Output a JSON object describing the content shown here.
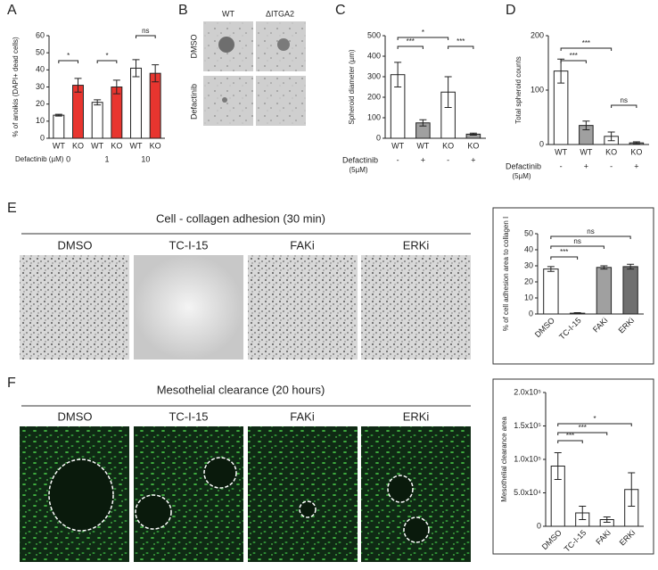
{
  "panel_labels": [
    "A",
    "B",
    "C",
    "D",
    "E",
    "F"
  ],
  "B_images": {
    "columns": [
      "WT",
      "ΔITGA2"
    ],
    "rows": [
      "DMSO",
      "Defactinib"
    ]
  },
  "E_images": {
    "title": "Cell - collagen adhesion (30 min)",
    "columns": [
      "DMSO",
      "TC-I-15",
      "FAKi",
      "ERKi"
    ]
  },
  "F_images": {
    "title": "Mesothelial clearance (20 hours)",
    "columns": [
      "DMSO",
      "TC-I-15",
      "FAKi",
      "ERKi"
    ]
  },
  "chart_data": [
    {
      "type": "bar",
      "ylabel": "% of anoikis (DAPI+ dead cells)",
      "categories": [
        "WT",
        "KO",
        "WT",
        "KO",
        "WT",
        "KO"
      ],
      "values": [
        13.5,
        31,
        21,
        30,
        41,
        38
      ],
      "errors": [
        0.5,
        4,
        1.5,
        4,
        5,
        5
      ],
      "colors": [
        "#ffffff",
        "#e8352f",
        "#ffffff",
        "#e8352f",
        "#ffffff",
        "#e8352f"
      ],
      "group_label": "Defactinib (µM)",
      "groups": [
        "0",
        "1",
        "10"
      ],
      "significance": [
        "*",
        "*",
        "ns"
      ],
      "ylim": [
        0,
        60
      ],
      "yticks": [
        0,
        10,
        20,
        30,
        40,
        50,
        60
      ]
    },
    {
      "type": "bar",
      "ylabel": "Spheroid diameter (µm)",
      "categories": [
        "WT",
        "WT",
        "KO",
        "KO"
      ],
      "values": [
        310,
        75,
        225,
        20
      ],
      "errors": [
        60,
        15,
        75,
        5
      ],
      "colors": [
        "#ffffff",
        "#a0a0a0",
        "#ffffff",
        "#a0a0a0"
      ],
      "treatment_label": "Defactinib",
      "treatment_unit": "(5µM)",
      "treatment": [
        "-",
        "+",
        "-",
        "+"
      ],
      "significance": [
        "***",
        "*",
        "***"
      ],
      "ylim": [
        0,
        500
      ],
      "yticks": [
        0,
        100,
        200,
        300,
        400,
        500
      ]
    },
    {
      "type": "bar",
      "ylabel": "Total spheroid counts",
      "categories": [
        "WT",
        "WT",
        "KO",
        "KO"
      ],
      "values": [
        135,
        35,
        15,
        3
      ],
      "errors": [
        22,
        8,
        8,
        2
      ],
      "colors": [
        "#ffffff",
        "#a0a0a0",
        "#ffffff",
        "#a0a0a0"
      ],
      "treatment_label": "Defactinib",
      "treatment_unit": "(5µM)",
      "treatment": [
        "-",
        "+",
        "-",
        "+"
      ],
      "significance": [
        "***",
        "***",
        "ns"
      ],
      "ylim": [
        0,
        200
      ],
      "yticks": [
        0,
        100,
        200
      ]
    },
    {
      "type": "bar",
      "ylabel": "% of cell adhesion area to collagen I",
      "categories": [
        "DMSO",
        "TC-I-15",
        "FAKi",
        "ERKi"
      ],
      "values": [
        28,
        0.5,
        29,
        29.5
      ],
      "errors": [
        1.5,
        0.3,
        1,
        1.5
      ],
      "colors": [
        "#ffffff",
        "#ffffff",
        "#a0a0a0",
        "#707070"
      ],
      "significance": [
        "***",
        "ns",
        "ns"
      ],
      "ylim": [
        0,
        50
      ],
      "yticks": [
        0,
        10,
        20,
        30,
        40,
        50
      ]
    },
    {
      "type": "bar",
      "ylabel": "Mesothelial clearance area",
      "categories": [
        "DMSO",
        "TC-I-15",
        "FAKi",
        "ERKi"
      ],
      "values": [
        90000,
        20000,
        10000,
        55000
      ],
      "errors": [
        20000,
        10000,
        4000,
        25000
      ],
      "colors": [
        "#ffffff",
        "#ffffff",
        "#ffffff",
        "#ffffff"
      ],
      "significance": [
        "***",
        "***",
        "*"
      ],
      "ylim": [
        0,
        200000
      ],
      "yticks": [
        0,
        {
          "value": 50000,
          "label": "5.0x10⁴"
        },
        {
          "value": 100000,
          "label": "1.0x10⁵"
        },
        {
          "value": 150000,
          "label": "1.5x10⁵"
        },
        {
          "value": 200000,
          "label": "2.0x10⁵"
        }
      ]
    }
  ]
}
